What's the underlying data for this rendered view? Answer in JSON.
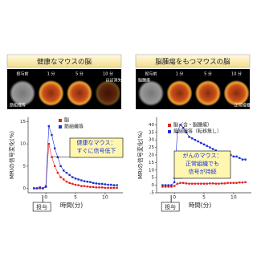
{
  "chart_data": [
    {
      "type": "line",
      "title": "健康なマウスの脳",
      "image_labels": [
        "投与前",
        "1 分",
        "5 分",
        "10 分"
      ],
      "image_notes": [
        "筋組織等",
        "ほぼ消失"
      ],
      "xlabel": "時間(分)",
      "ylabel": "MRIの信号変化(%)",
      "x_marker_label": "投与",
      "annotation": [
        "健康なマウス：",
        "すぐに信号低下"
      ],
      "x": [
        -2,
        -1.5,
        -1,
        -0.5,
        0,
        0.5,
        1,
        1.5,
        2,
        2.5,
        3,
        3.5,
        4,
        4.5,
        5,
        5.5,
        6,
        6.5,
        7,
        7.5,
        8,
        8.5,
        9,
        9.5,
        10,
        10.5,
        11,
        11.5,
        12
      ],
      "series": [
        {
          "name": "脳",
          "color": "#e02020",
          "values": [
            0,
            0,
            0,
            0,
            0.3,
            10,
            7,
            5,
            3.5,
            2.5,
            2,
            1.5,
            1.2,
            1,
            0.8,
            0.7,
            0.5,
            0.5,
            0.4,
            0.3,
            0.3,
            0.2,
            0.2,
            0.2,
            0.1,
            0.1,
            0.1,
            0.1,
            0.1
          ]
        },
        {
          "name": "筋組織等",
          "color": "#1a2fd0",
          "values": [
            0,
            0,
            0.2,
            0,
            0.5,
            14,
            12,
            9,
            7,
            5,
            4,
            3.5,
            3,
            2.5,
            2.2,
            2,
            1.8,
            1.6,
            1.5,
            1.4,
            1.2,
            1.1,
            1,
            1,
            0.9,
            0.8,
            0.8,
            0.7,
            0.7
          ]
        }
      ],
      "xlim": [
        -3,
        13
      ],
      "xticks": [
        0,
        5,
        10
      ],
      "ylim": [
        -1,
        16
      ],
      "yticks": [
        0,
        5,
        10,
        15
      ]
    },
    {
      "type": "line",
      "title": "脳腫瘍をもつマウスの脳",
      "image_labels": [
        "投与前",
        "1 分",
        "5 分",
        "10 分"
      ],
      "image_notes": [
        "脳腫瘍",
        "正常組織"
      ],
      "xlabel": "時間(分)",
      "ylabel": "MRIの信号変化(%)",
      "x_marker_label": "投与",
      "annotation": [
        "がんのマウス：",
        "正常組織でも",
        "信号が持続"
      ],
      "x": [
        -2,
        -1.5,
        -1,
        -0.5,
        0,
        0.5,
        1,
        1.5,
        2,
        2.5,
        3,
        3.5,
        4,
        4.5,
        5,
        5.5,
        6,
        6.5,
        7,
        7.5,
        8,
        8.5,
        9,
        9.5,
        10,
        10.5,
        11,
        11.5,
        12
      ],
      "series": [
        {
          "name": "脳（含・脳腫瘍）",
          "color": "#e02020",
          "values": [
            -1,
            -1,
            -1,
            -1,
            -0.5,
            1,
            1.5,
            1.5,
            1.2,
            1,
            1,
            1,
            1,
            1,
            1,
            1,
            1.2,
            1.2,
            1,
            1,
            1.2,
            1.2,
            1.5,
            1.5,
            1.5,
            1.5,
            1.8,
            1.8,
            2
          ]
        },
        {
          "name": "筋組織等（転移無し）",
          "color": "#1a2fd0",
          "values": [
            0,
            0,
            0,
            0,
            2,
            35,
            40,
            38,
            35,
            32,
            31,
            30,
            29,
            28,
            27,
            26,
            25,
            24,
            23,
            22,
            21,
            21,
            20,
            20,
            19,
            19,
            18,
            17,
            17
          ]
        }
      ],
      "xlim": [
        -3,
        13
      ],
      "xticks": [
        0,
        5,
        10
      ],
      "ylim": [
        -5,
        45
      ],
      "yticks": [
        -5,
        0,
        5,
        10,
        15,
        20,
        25,
        30,
        35,
        40
      ]
    }
  ]
}
